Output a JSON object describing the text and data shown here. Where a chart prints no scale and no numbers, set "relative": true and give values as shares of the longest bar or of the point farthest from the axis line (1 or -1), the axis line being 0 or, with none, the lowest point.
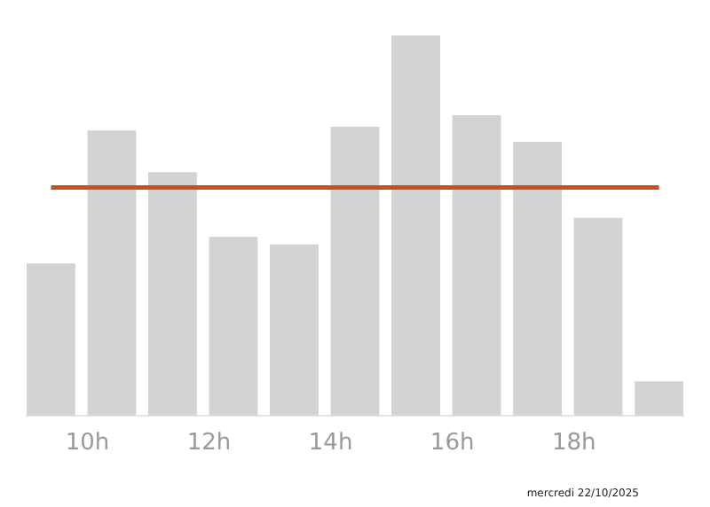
{
  "chart_data": {
    "type": "bar",
    "relative": true,
    "x": [
      9.4,
      10.4,
      11.4,
      12.4,
      13.4,
      14.4,
      15.4,
      16.4,
      17.4,
      18.4,
      19.4
    ],
    "values": [
      0.4,
      0.75,
      0.64,
      0.47,
      0.45,
      0.76,
      1,
      0.79,
      0.72,
      0.52,
      0.09
    ],
    "color": "#d3d3d3",
    "xlim": [
      9,
      19.8
    ],
    "xticks": [
      {
        "value": 10,
        "label": "10h"
      },
      {
        "value": 12,
        "label": "12h"
      },
      {
        "value": 14,
        "label": "14h"
      },
      {
        "value": 16,
        "label": "16h"
      },
      {
        "value": 18,
        "label": "18h"
      }
    ],
    "ref_lines": [
      {
        "axis": "y",
        "value": 0.6,
        "color": "#c8501e"
      }
    ],
    "annotations": [
      "mercredi 22/10/2025"
    ],
    "grid": false,
    "legend": false
  }
}
